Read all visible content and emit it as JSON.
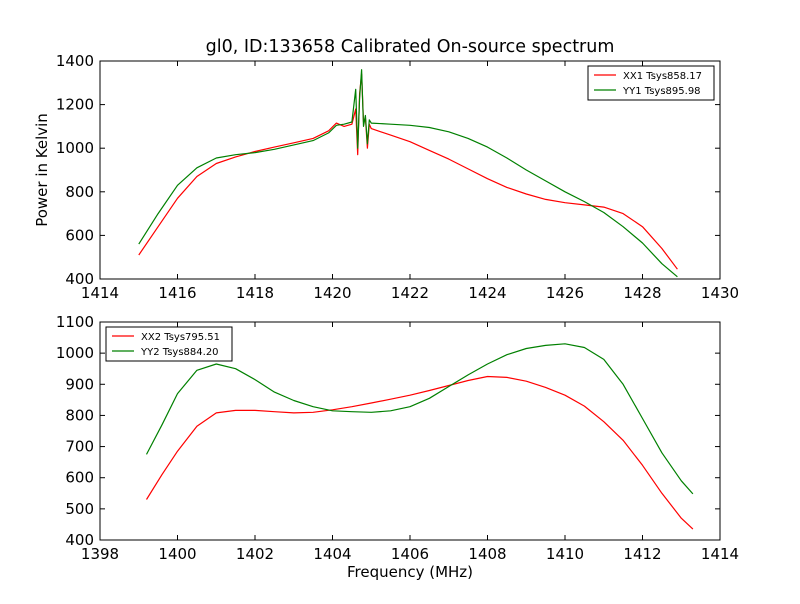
{
  "figure": {
    "title": "gl0, ID:133658 Calibrated On-source spectrum"
  },
  "chart_data": [
    {
      "type": "line",
      "title": "gl0, ID:133658 Calibrated On-source spectrum",
      "xlabel": "",
      "ylabel": "Power in Kelvin",
      "xlim": [
        1414,
        1430
      ],
      "ylim": [
        400,
        1400
      ],
      "xticks": [
        1414,
        1416,
        1418,
        1420,
        1422,
        1424,
        1426,
        1428,
        1430
      ],
      "yticks": [
        400,
        600,
        800,
        1000,
        1200,
        1400
      ],
      "legend_position": "top-right",
      "grid": false,
      "series": [
        {
          "name": "XX1 Tsys858.17",
          "color": "#ff0000",
          "x": [
            1415.0,
            1415.5,
            1416.0,
            1416.5,
            1417.0,
            1417.5,
            1418.0,
            1418.5,
            1419.0,
            1419.5,
            1419.9,
            1420.1,
            1420.3,
            1420.5,
            1420.6,
            1420.65,
            1420.7,
            1420.75,
            1420.8,
            1420.85,
            1420.9,
            1420.95,
            1421.0,
            1421.5,
            1422.0,
            1422.5,
            1423.0,
            1423.5,
            1424.0,
            1424.5,
            1425.0,
            1425.5,
            1426.0,
            1426.5,
            1427.0,
            1427.5,
            1428.0,
            1428.5,
            1428.9
          ],
          "y": [
            510,
            640,
            770,
            870,
            930,
            960,
            985,
            1005,
            1025,
            1045,
            1080,
            1115,
            1100,
            1110,
            1180,
            970,
            1250,
            1340,
            1120,
            1140,
            1000,
            1110,
            1090,
            1060,
            1030,
            990,
            950,
            905,
            860,
            820,
            790,
            765,
            750,
            740,
            730,
            700,
            640,
            540,
            445
          ]
        },
        {
          "name": "YY1 Tsys895.98",
          "color": "#008000",
          "x": [
            1415.0,
            1415.5,
            1416.0,
            1416.5,
            1417.0,
            1417.5,
            1418.0,
            1418.5,
            1419.0,
            1419.5,
            1419.9,
            1420.1,
            1420.3,
            1420.5,
            1420.6,
            1420.65,
            1420.7,
            1420.75,
            1420.8,
            1420.85,
            1420.9,
            1420.95,
            1421.0,
            1421.5,
            1422.0,
            1422.5,
            1423.0,
            1423.5,
            1424.0,
            1424.5,
            1425.0,
            1425.5,
            1426.0,
            1426.5,
            1427.0,
            1427.5,
            1428.0,
            1428.5,
            1428.9
          ],
          "y": [
            560,
            700,
            830,
            910,
            955,
            970,
            980,
            995,
            1015,
            1035,
            1070,
            1105,
            1110,
            1120,
            1270,
            1000,
            1230,
            1360,
            1100,
            1150,
            1020,
            1130,
            1115,
            1110,
            1105,
            1095,
            1075,
            1045,
            1005,
            955,
            900,
            850,
            800,
            755,
            705,
            640,
            565,
            470,
            410
          ]
        }
      ]
    },
    {
      "type": "line",
      "title": "",
      "xlabel": "Frequency (MHz)",
      "ylabel": "",
      "xlim": [
        1398,
        1414
      ],
      "ylim": [
        400,
        1100
      ],
      "xticks": [
        1398,
        1400,
        1402,
        1404,
        1406,
        1408,
        1410,
        1412,
        1414
      ],
      "yticks": [
        400,
        500,
        600,
        700,
        800,
        900,
        1000,
        1100
      ],
      "legend_position": "top-left",
      "grid": false,
      "series": [
        {
          "name": "XX2 Tsys795.51",
          "color": "#ff0000",
          "x": [
            1399.2,
            1399.6,
            1400.0,
            1400.5,
            1401.0,
            1401.5,
            1402.0,
            1402.5,
            1403.0,
            1403.5,
            1404.0,
            1404.5,
            1405.0,
            1405.5,
            1406.0,
            1406.5,
            1407.0,
            1407.5,
            1408.0,
            1408.5,
            1409.0,
            1409.5,
            1410.0,
            1410.5,
            1411.0,
            1411.5,
            1412.0,
            1412.5,
            1413.0,
            1413.3
          ],
          "y": [
            530,
            610,
            685,
            765,
            808,
            816,
            816,
            812,
            808,
            810,
            818,
            828,
            840,
            852,
            865,
            880,
            896,
            912,
            925,
            922,
            910,
            890,
            865,
            830,
            780,
            720,
            640,
            550,
            470,
            435
          ]
        },
        {
          "name": "YY2 Tsys884.20",
          "color": "#008000",
          "x": [
            1399.2,
            1399.6,
            1400.0,
            1400.5,
            1401.0,
            1401.5,
            1402.0,
            1402.5,
            1403.0,
            1403.5,
            1404.0,
            1404.5,
            1405.0,
            1405.5,
            1406.0,
            1406.5,
            1407.0,
            1407.5,
            1408.0,
            1408.5,
            1409.0,
            1409.5,
            1410.0,
            1410.5,
            1411.0,
            1411.5,
            1412.0,
            1412.5,
            1413.0,
            1413.3
          ],
          "y": [
            675,
            770,
            870,
            945,
            965,
            950,
            915,
            875,
            848,
            828,
            815,
            812,
            810,
            815,
            828,
            855,
            893,
            930,
            965,
            995,
            1015,
            1025,
            1030,
            1018,
            980,
            900,
            790,
            680,
            590,
            548
          ]
        }
      ]
    }
  ]
}
